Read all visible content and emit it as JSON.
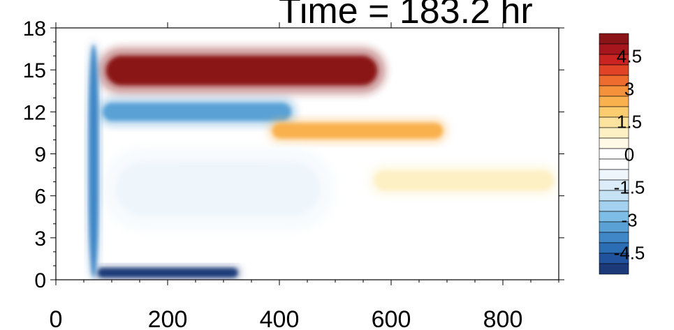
{
  "chart_data": {
    "type": "heatmap",
    "title": "Time = 183.2 hr",
    "xlabel": "",
    "ylabel": "",
    "xlim": [
      0,
      900
    ],
    "ylim": [
      0,
      18
    ],
    "x_ticks": [
      0,
      200,
      400,
      600,
      800
    ],
    "y_ticks": [
      0,
      3,
      6,
      9,
      12,
      15,
      18
    ],
    "colorbar": {
      "levels": [
        -5.5,
        -5,
        -4.5,
        -4,
        -3.5,
        -3,
        -2.5,
        -2,
        -1.5,
        -1,
        -0.5,
        0,
        0.5,
        1,
        1.5,
        2,
        2.5,
        3,
        3.5,
        4,
        4.5,
        5,
        5.5
      ],
      "tick_labels": [
        "4.5",
        "3",
        "1.5",
        "0",
        "-1.5",
        "-3",
        "-4.5"
      ],
      "tick_values": [
        4.5,
        3,
        1.5,
        0,
        -1.5,
        -3,
        -4.5
      ],
      "colors": [
        "#1d3a78",
        "#21529e",
        "#2c6eb5",
        "#3f87c6",
        "#5aa2d6",
        "#7ebde6",
        "#a3d1ef",
        "#c6e2f5",
        "#dcedf9",
        "#eef6fc",
        "#ffffff",
        "#ffffff",
        "#fff9e6",
        "#fdf0c4",
        "#fde3a0",
        "#fbcd6e",
        "#f9b14e",
        "#f5913a",
        "#ee6c2d",
        "#e14326",
        "#c92322",
        "#a8161d",
        "#8b1419"
      ]
    },
    "features": [
      {
        "name": "upper positive band",
        "x": [
          75,
          590
        ],
        "y": [
          13.3,
          16.6
        ],
        "value": 5.5
      },
      {
        "name": "negative band below",
        "x": [
          75,
          430
        ],
        "y": [
          11.0,
          13.0
        ],
        "value": -3.5
      },
      {
        "name": "positive band near 10",
        "x": [
          380,
          700
        ],
        "y": [
          9.8,
          11.5
        ],
        "value": 2.5
      },
      {
        "name": "weak positive band near 7",
        "x": [
          560,
          900
        ],
        "y": [
          6.0,
          8.2
        ],
        "value": 1.0
      },
      {
        "name": "weak negative region",
        "x": [
          80,
          500
        ],
        "y": [
          3.5,
          9.5
        ],
        "value": -1.0
      },
      {
        "name": "near-surface negative",
        "x": [
          70,
          330
        ],
        "y": [
          0,
          1.0
        ],
        "value": -5.5
      },
      {
        "name": "vertical front",
        "x": [
          55,
          80
        ],
        "y": [
          0,
          17
        ],
        "value": -4.0
      }
    ]
  }
}
